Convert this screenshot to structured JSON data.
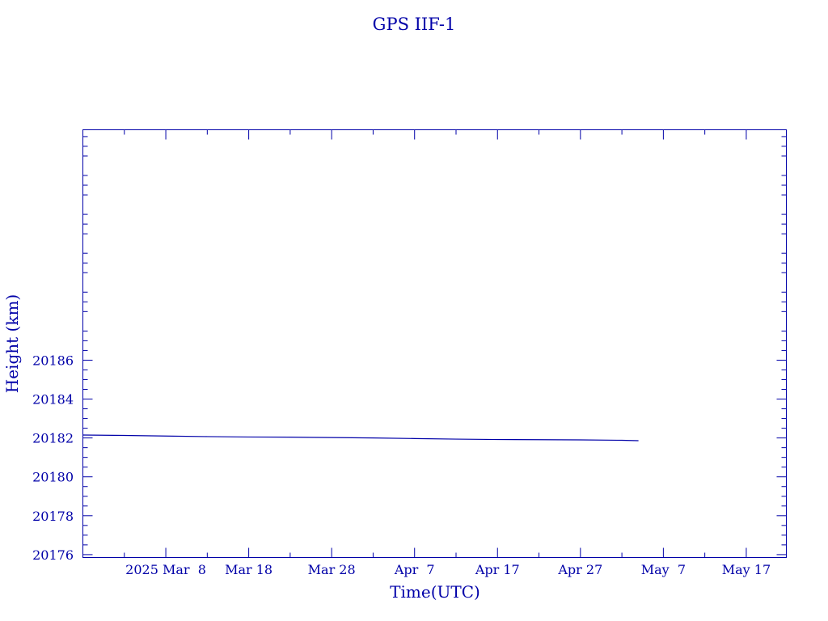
{
  "chart_data": {
    "type": "line",
    "title": "GPS IIF-1",
    "xlabel": "Time(UTC)",
    "ylabel": "Height (km)",
    "x_tick_labels": [
      "2025 Mar  8",
      "Mar 18",
      "Mar 28",
      "Apr  7",
      "Apr 17",
      "Apr 27",
      "May  7",
      "May 17"
    ],
    "x_tick_dates": [
      "2025-03-08",
      "2025-03-18",
      "2025-03-28",
      "2025-04-07",
      "2025-04-17",
      "2025-04-27",
      "2025-05-07",
      "2025-05-17"
    ],
    "xlim": [
      "2025-02-26T00:00",
      "2025-05-21T20:00"
    ],
    "ylim": [
      20175.85,
      20197.85
    ],
    "y_ticks": [
      20176,
      20178,
      20180,
      20182,
      20184,
      20186
    ],
    "y_tick_labels": [
      "20176",
      "20178",
      "20180",
      "20182",
      "20184",
      "20186"
    ],
    "grid": false,
    "series": [
      {
        "x": [
          "2025-02-26",
          "2025-03-03",
          "2025-03-08",
          "2025-03-13",
          "2025-03-18",
          "2025-03-23",
          "2025-03-28",
          "2025-04-02",
          "2025-04-07",
          "2025-04-12",
          "2025-04-17",
          "2025-04-22",
          "2025-04-27",
          "2025-05-02",
          "2025-05-04"
        ],
        "y": [
          20182.15,
          20182.13,
          20182.1,
          20182.07,
          20182.05,
          20182.04,
          20182.02,
          20182.0,
          20181.97,
          20181.94,
          20181.92,
          20181.91,
          20181.9,
          20181.88,
          20181.86
        ]
      }
    ],
    "colors": {
      "axis": "#0000a8",
      "line": "#0000a8"
    }
  }
}
